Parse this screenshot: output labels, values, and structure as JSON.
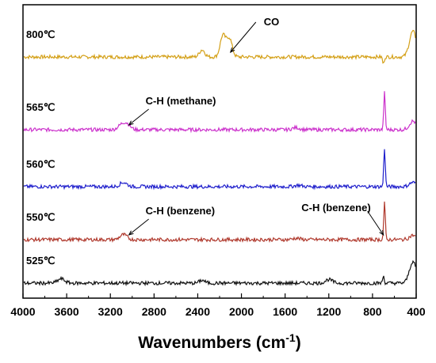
{
  "chart_data": {
    "type": "line",
    "title": "",
    "xlabel": "Wavenumbers (cm",
    "xlabel_sup": "-1",
    "ylabel": "",
    "xlim": [
      4000,
      400
    ],
    "x_reversed": true,
    "x_ticks": [
      4000,
      3600,
      3200,
      2800,
      2400,
      2000,
      1600,
      1200,
      800,
      400
    ],
    "y_ticks_shown": false,
    "grid": false,
    "legend": "none",
    "series": [
      {
        "name": "800℃",
        "color": "#d4a017",
        "peaks": [
          {
            "x": 2360,
            "value": 0.5
          },
          {
            "x": 2170,
            "value": 1.5
          },
          {
            "x": 2110,
            "value": 1.3
          },
          {
            "x": 700,
            "value": -0.5
          },
          {
            "x": 430,
            "value": 1.8
          }
        ]
      },
      {
        "name": "565℃",
        "color": "#cc33cc",
        "peaks": [
          {
            "x": 3050,
            "value": 0.4
          },
          {
            "x": 3100,
            "value": 0.3
          },
          {
            "x": 1500,
            "value": 0.15
          },
          {
            "x": 690,
            "value": 2.6
          },
          {
            "x": 430,
            "value": 0.6
          }
        ]
      },
      {
        "name": "560℃",
        "color": "#1f1fcc",
        "peaks": [
          {
            "x": 3080,
            "value": 0.3
          },
          {
            "x": 1480,
            "value": 0.1
          },
          {
            "x": 690,
            "value": 2.7
          },
          {
            "x": 430,
            "value": 0.3
          }
        ]
      },
      {
        "name": "550℃",
        "color": "#b03a2e",
        "peaks": [
          {
            "x": 3080,
            "value": 0.35
          },
          {
            "x": 1500,
            "value": 0.1
          },
          {
            "x": 690,
            "value": 2.6
          },
          {
            "x": 430,
            "value": 0.3
          }
        ]
      },
      {
        "name": "525℃",
        "color": "#111111",
        "peaks": [
          {
            "x": 3650,
            "value": 0.3
          },
          {
            "x": 2360,
            "value": 0.2
          },
          {
            "x": 1200,
            "value": 0.25
          },
          {
            "x": 700,
            "value": 0.5
          },
          {
            "x": 430,
            "value": 1.5
          }
        ]
      }
    ],
    "annotations": [
      {
        "text": "CO",
        "series": "800℃",
        "x": 2100
      },
      {
        "text": "C-H (methane)",
        "series": "565℃",
        "x": 3030
      },
      {
        "text": "C-H (benzene)",
        "series": "550℃",
        "x": 3030
      },
      {
        "text": "C-H (benzene)",
        "series": "550℃",
        "x": 700
      }
    ]
  }
}
